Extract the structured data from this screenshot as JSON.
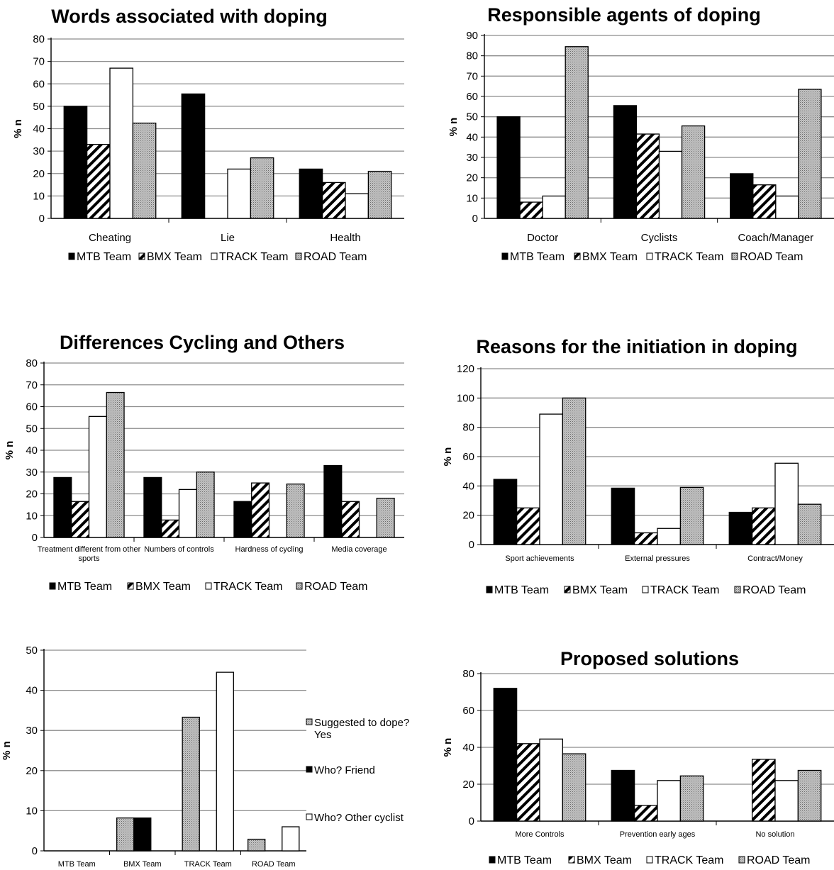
{
  "patterns": {
    "MTB": "#000000",
    "BMX": "diagonal-hatch",
    "TRACK": "#ffffff",
    "ROAD": "dotted-gray"
  },
  "chart_data": [
    {
      "type": "bar",
      "title": "Words associated with doping",
      "ylabel": "% n",
      "ylim": [
        0,
        80
      ],
      "ystep": 10,
      "categories": [
        "Cheating",
        "Lie",
        "Health"
      ],
      "series": [
        {
          "name": "MTB Team",
          "pattern": "MTB",
          "values": [
            50,
            55.5,
            22
          ]
        },
        {
          "name": "BMX Team",
          "pattern": "BMX",
          "values": [
            33,
            0,
            16
          ]
        },
        {
          "name": "TRACK Team",
          "pattern": "TRACK",
          "values": [
            67,
            22,
            11
          ]
        },
        {
          "name": "ROAD Team",
          "pattern": "ROAD",
          "values": [
            42.5,
            27,
            21
          ]
        }
      ],
      "legend": "bottom"
    },
    {
      "type": "bar",
      "title": "Responsible agents of doping",
      "ylabel": "% n",
      "ylim": [
        0,
        90
      ],
      "ystep": 10,
      "categories": [
        "Doctor",
        "Cyclists",
        "Coach/Manager"
      ],
      "series": [
        {
          "name": "MTB Team",
          "pattern": "MTB",
          "values": [
            50,
            55.5,
            22
          ]
        },
        {
          "name": "BMX Team",
          "pattern": "BMX",
          "values": [
            8,
            41.5,
            16.5
          ]
        },
        {
          "name": "TRACK Team",
          "pattern": "TRACK",
          "values": [
            11,
            33,
            11
          ]
        },
        {
          "name": "ROAD Team",
          "pattern": "ROAD",
          "values": [
            84.5,
            45.5,
            63.5
          ]
        }
      ],
      "legend": "bottom"
    },
    {
      "type": "bar",
      "title": "Differences Cycling and Others",
      "ylabel": "% n",
      "ylim": [
        0,
        80
      ],
      "ystep": 10,
      "categories": [
        "Treatment different from other sports",
        "Numbers of controls",
        "Hardness of cycling",
        "Media coverage"
      ],
      "series": [
        {
          "name": "MTB Team",
          "pattern": "MTB",
          "values": [
            27.5,
            27.5,
            16.5,
            33
          ]
        },
        {
          "name": "BMX Team",
          "pattern": "BMX",
          "values": [
            16.5,
            8,
            25,
            16.5
          ]
        },
        {
          "name": "TRACK Team",
          "pattern": "TRACK",
          "values": [
            55.5,
            22,
            0,
            0
          ]
        },
        {
          "name": "ROAD Team",
          "pattern": "ROAD",
          "values": [
            66.5,
            30,
            24.5,
            18
          ]
        }
      ],
      "legend": "bottom"
    },
    {
      "type": "bar",
      "title": "Reasons for the initiation in doping",
      "ylabel": "% n",
      "ylim": [
        0,
        120
      ],
      "ystep": 20,
      "categories": [
        "Sport achievements",
        "External pressures",
        "Contract/Money"
      ],
      "series": [
        {
          "name": "MTB Team",
          "pattern": "MTB",
          "values": [
            44.5,
            38.5,
            22
          ]
        },
        {
          "name": "BMX Team",
          "pattern": "BMX",
          "values": [
            25,
            8,
            25
          ]
        },
        {
          "name": "TRACK Team",
          "pattern": "TRACK",
          "values": [
            89,
            11,
            55.5
          ]
        },
        {
          "name": "ROAD Team",
          "pattern": "ROAD",
          "values": [
            100,
            39,
            27.5
          ]
        }
      ],
      "legend": "bottom"
    },
    {
      "type": "bar",
      "title": "",
      "ylabel": "% n",
      "ylim": [
        0,
        50
      ],
      "ystep": 10,
      "categories": [
        "MTB Team",
        "BMX Team",
        "TRACK Team",
        "ROAD Team"
      ],
      "series": [
        {
          "name": "Suggested to dope? Yes",
          "pattern": "ROAD",
          "values": [
            0,
            8.2,
            33.3,
            2.9
          ]
        },
        {
          "name": "Who? Friend",
          "pattern": "MTB",
          "values": [
            0,
            8.2,
            0,
            0
          ]
        },
        {
          "name": "Who? Other cyclist",
          "pattern": "TRACK",
          "values": [
            0,
            0,
            44.5,
            6
          ]
        }
      ],
      "legend": "right"
    },
    {
      "type": "bar",
      "title": "Proposed solutions",
      "ylabel": "% n",
      "ylim": [
        0,
        80
      ],
      "ystep": 20,
      "categories": [
        "More Controls",
        "Prevention early ages",
        "No solution"
      ],
      "series": [
        {
          "name": "MTB Team",
          "pattern": "MTB",
          "values": [
            72,
            27.5,
            0
          ]
        },
        {
          "name": "BMX Team",
          "pattern": "BMX",
          "values": [
            42,
            8.5,
            33.5
          ]
        },
        {
          "name": "TRACK Team",
          "pattern": "TRACK",
          "values": [
            44.5,
            22,
            22
          ]
        },
        {
          "name": "ROAD Team",
          "pattern": "ROAD",
          "values": [
            36.5,
            24.5,
            27.5
          ]
        }
      ],
      "legend": "bottom"
    }
  ]
}
